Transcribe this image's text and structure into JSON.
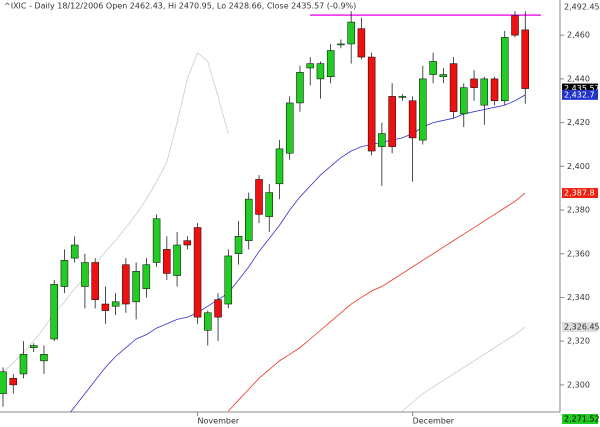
{
  "chart_data": {
    "type": "candlestick",
    "title": "^IXIC - Daily 18/12/2006 Open 2462.43, Hi 2470.95, Lo 2428.66, Close 2435.57 (-0.9%)",
    "categories": [
      null,
      null,
      null,
      null,
      null,
      null,
      null,
      null,
      null,
      null,
      null,
      null,
      null,
      null,
      null,
      null,
      null,
      null,
      null,
      "November",
      null,
      null,
      null,
      null,
      null,
      null,
      null,
      null,
      null,
      null,
      null,
      null,
      null,
      null,
      null,
      null,
      null,
      null,
      null,
      null,
      "December",
      null,
      null,
      null,
      null,
      null,
      null,
      null,
      null,
      null,
      null,
      null
    ],
    "open": [
      2296,
      2303,
      2305,
      2317,
      2311,
      2321,
      2345,
      2358,
      2345,
      2356,
      2337,
      2336,
      2355,
      2338,
      2344,
      2356,
      2362,
      2350,
      2366,
      2372,
      2325,
      2339,
      2337,
      2360,
      2366,
      2394,
      2377,
      2392,
      2406,
      2429,
      2445,
      2440,
      2441,
      2456,
      2456,
      2463,
      2450,
      2409,
      2432,
      2432,
      2430,
      2412,
      2442,
      2441,
      2447,
      2424,
      2440,
      2428,
      2440,
      2430,
      2469,
      2462.43
    ],
    "high": [
      2308,
      2305,
      2320,
      2319,
      2318,
      2348,
      2362,
      2368,
      2360,
      2358,
      2345,
      2342,
      2358,
      2356,
      2358,
      2378,
      2368,
      2370,
      2368,
      2374,
      2334,
      2342,
      2362,
      2375,
      2388,
      2396,
      2392,
      2412,
      2432,
      2446,
      2450,
      2448,
      2456,
      2458,
      2471,
      2468,
      2452,
      2420,
      2438,
      2433,
      2432,
      2446,
      2452,
      2445,
      2450,
      2438,
      2444,
      2441,
      2441,
      2462,
      2471,
      2470.95
    ],
    "low": [
      2290,
      2296,
      2303,
      2315,
      2305,
      2320,
      2342,
      2356,
      2335,
      2335,
      2328,
      2332,
      2333,
      2330,
      2340,
      2354,
      2348,
      2345,
      2362,
      2328,
      2318,
      2320,
      2335,
      2355,
      2362,
      2374,
      2370,
      2385,
      2403,
      2425,
      2437,
      2431,
      2438,
      2454,
      2447,
      2449,
      2405,
      2391,
      2406,
      2430,
      2393,
      2410,
      2438,
      2438,
      2422,
      2418,
      2430,
      2419,
      2428,
      2428,
      2459,
      2428.66
    ],
    "close": [
      2306,
      2300,
      2314,
      2318,
      2314,
      2346,
      2357,
      2364,
      2356,
      2339,
      2334,
      2338,
      2337,
      2352,
      2355,
      2376,
      2351,
      2364,
      2364,
      2331,
      2333,
      2331,
      2359,
      2368,
      2385,
      2378,
      2388,
      2408,
      2429,
      2443,
      2447,
      2447,
      2453,
      2456,
      2466,
      2450,
      2407,
      2415,
      2409,
      2432,
      2413,
      2440,
      2448,
      2442,
      2425,
      2436,
      2436,
      2440,
      2430,
      2459,
      2460,
      2435.57
    ],
    "up_color": "#22cc22",
    "down_color": "#ee1111",
    "overlays": [
      {
        "color": "#3333cc",
        "values": [
          null,
          null,
          null,
          null,
          null,
          null,
          2284,
          2290,
          2296,
          2302,
          2308,
          2313,
          2317,
          2321,
          2323,
          2326,
          2328,
          2330,
          2331,
          2333,
          2336,
          2339,
          2342,
          2348,
          2354,
          2361,
          2367,
          2373,
          2380,
          2386,
          2391,
          2396,
          2400,
          2404,
          2407,
          2409,
          2410,
          2411,
          2412,
          2413,
          2415,
          2418,
          2420,
          2421,
          2422,
          2424,
          2425,
          2426,
          2427,
          2428,
          2430,
          2432.7
        ]
      },
      {
        "color": "#ee3322",
        "values": [
          null,
          null,
          null,
          null,
          null,
          null,
          null,
          null,
          null,
          null,
          null,
          null,
          null,
          null,
          null,
          null,
          null,
          null,
          null,
          null,
          null,
          null,
          2288,
          2293,
          2298,
          2303,
          2307,
          2311,
          2314,
          2317,
          2321,
          2325,
          2329,
          2333,
          2337,
          2340,
          2343,
          2345,
          2348,
          2351,
          2354,
          2357,
          2360,
          2363,
          2366,
          2369,
          2372,
          2375,
          2378,
          2381,
          2384,
          2387.8
        ]
      },
      {
        "color": "#cccccc",
        "values": [
          2306,
          2310,
          2315,
          2320,
          2326,
          2333,
          2338,
          2344,
          2349,
          2355,
          2361,
          2366,
          2372,
          2378,
          2385,
          2393,
          2402,
          2420,
          2440,
          2452,
          2448,
          2432,
          2415,
          null,
          null,
          null,
          null,
          null,
          null,
          null,
          null,
          null,
          null,
          null,
          null,
          null,
          null,
          null,
          null,
          null,
          null,
          null,
          null,
          null,
          null,
          null,
          null,
          null,
          null,
          null,
          null,
          null
        ]
      },
      {
        "color": "#cccccc",
        "values": [
          null,
          null,
          null,
          null,
          null,
          null,
          null,
          null,
          null,
          null,
          null,
          null,
          null,
          null,
          null,
          null,
          null,
          null,
          null,
          null,
          null,
          null,
          null,
          null,
          null,
          null,
          null,
          null,
          null,
          null,
          null,
          null,
          null,
          null,
          null,
          null,
          null,
          null,
          null,
          2288,
          2292,
          2296,
          2299,
          2302,
          2305,
          2308,
          2311,
          2314,
          2317,
          2320,
          2323,
          2326.45
        ]
      }
    ],
    "resistance": {
      "value": 2469.2,
      "color": "#ee22ee"
    },
    "price_labels": [
      {
        "value": 2492.45,
        "label": "2,492.45",
        "color": "#ffffff",
        "text_color": "#333333"
      },
      {
        "value": 2435.57,
        "label": "2,435.57",
        "color": "#000000",
        "text_color": "#ffffff"
      },
      {
        "value": 2432.7,
        "label": "2,432.7",
        "color": "#2233cc",
        "text_color": "#ffffff"
      },
      {
        "value": 2387.8,
        "label": "2,387.8",
        "color": "#ee2211",
        "text_color": "#ffffff"
      },
      {
        "value": 2326.45,
        "label": "2,326.45",
        "color": "#dddddd",
        "text_color": "#333333"
      },
      {
        "value": 2271.52,
        "label": "2,271.52",
        "color": "#22cc22",
        "text_color": "#000000"
      }
    ],
    "ylim": [
      2287.6,
      2476.1
    ],
    "yticks": [
      {
        "value": 2300,
        "label": "2,300"
      },
      {
        "value": 2320,
        "label": "2,320"
      },
      {
        "value": 2340,
        "label": "2,340"
      },
      {
        "value": 2360,
        "label": "2,360"
      },
      {
        "value": 2380,
        "label": "2,380"
      },
      {
        "value": 2400,
        "label": "2,400"
      },
      {
        "value": 2420,
        "label": "2,420"
      },
      {
        "value": 2440,
        "label": "2,440"
      },
      {
        "value": 2460,
        "label": "2,460"
      }
    ]
  }
}
